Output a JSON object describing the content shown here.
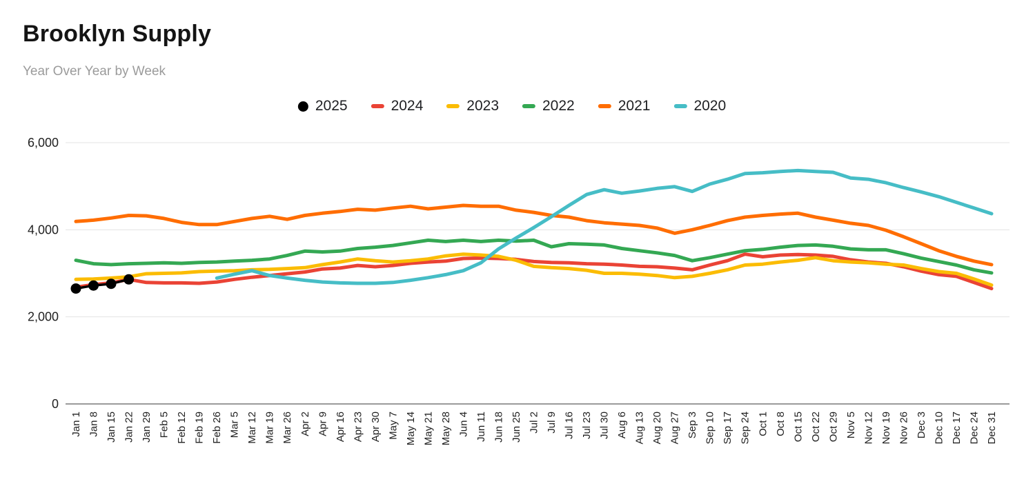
{
  "header": {
    "title": "Brooklyn Supply",
    "subtitle": "Year Over Year by Week"
  },
  "legend": {
    "position": "top-center"
  },
  "chart_data": {
    "type": "line",
    "title": "Brooklyn Supply",
    "subtitle": "Year Over Year by Week",
    "xlabel": "",
    "ylabel": "",
    "ylim": [
      0,
      6000
    ],
    "y_ticks": [
      0,
      2000,
      4000,
      6000
    ],
    "y_tick_labels": [
      "0",
      "2,000",
      "4,000",
      "6,000"
    ],
    "grid": "horizontal",
    "x_label_rotation": -90,
    "categories": [
      "Jan 1",
      "Jan 8",
      "Jan 15",
      "Jan 22",
      "Jan 29",
      "Feb 5",
      "Feb 12",
      "Feb 19",
      "Feb 26",
      "Mar 5",
      "Mar 12",
      "Mar 19",
      "Mar 26",
      "Apr 2",
      "Apr 9",
      "Apr 16",
      "Apr 23",
      "Apr 30",
      "May 7",
      "May 14",
      "May 21",
      "May 28",
      "Jun 4",
      "Jun 11",
      "Jun 18",
      "Jun 25",
      "Jul 2",
      "Jul 9",
      "Jul 16",
      "Jul 23",
      "Jul 30",
      "Aug 6",
      "Aug 13",
      "Aug 20",
      "Aug 27",
      "Sep 3",
      "Sep 10",
      "Sep 17",
      "Sep 24",
      "Oct 1",
      "Oct 8",
      "Oct 15",
      "Oct 22",
      "Oct 29",
      "Nov 5",
      "Nov 12",
      "Nov 19",
      "Nov 26",
      "Dec 3",
      "Dec 10",
      "Dec 17",
      "Dec 24",
      "Dec 31"
    ],
    "series": [
      {
        "name": "2025",
        "color": "#000000",
        "style": "line+markers",
        "values": [
          2650,
          2720,
          2760,
          2860
        ]
      },
      {
        "name": "2024",
        "color": "#ea4335",
        "style": "line",
        "values": [
          2680,
          2740,
          2780,
          2860,
          2790,
          2780,
          2780,
          2770,
          2800,
          2860,
          2910,
          2950,
          2990,
          3030,
          3100,
          3120,
          3180,
          3150,
          3180,
          3230,
          3260,
          3280,
          3340,
          3350,
          3340,
          3320,
          3270,
          3250,
          3240,
          3220,
          3210,
          3190,
          3160,
          3150,
          3120,
          3080,
          3190,
          3290,
          3440,
          3380,
          3420,
          3430,
          3420,
          3390,
          3310,
          3260,
          3230,
          3150,
          3050,
          2970,
          2930,
          2790,
          2650
        ]
      },
      {
        "name": "2023",
        "color": "#fbbc04",
        "style": "line",
        "values": [
          2860,
          2870,
          2890,
          2920,
          2990,
          3000,
          3010,
          3040,
          3050,
          3060,
          3080,
          3090,
          3110,
          3130,
          3200,
          3260,
          3330,
          3290,
          3260,
          3290,
          3330,
          3400,
          3440,
          3420,
          3390,
          3300,
          3160,
          3130,
          3110,
          3070,
          3000,
          3000,
          2980,
          2950,
          2900,
          2930,
          3000,
          3080,
          3190,
          3210,
          3260,
          3300,
          3360,
          3290,
          3260,
          3240,
          3210,
          3190,
          3110,
          3040,
          3000,
          2870,
          2730
        ]
      },
      {
        "name": "2022",
        "color": "#34a853",
        "style": "line",
        "values": [
          3300,
          3220,
          3200,
          3220,
          3230,
          3240,
          3230,
          3250,
          3260,
          3280,
          3300,
          3330,
          3410,
          3510,
          3490,
          3510,
          3570,
          3600,
          3640,
          3700,
          3760,
          3730,
          3760,
          3730,
          3760,
          3740,
          3760,
          3610,
          3680,
          3670,
          3650,
          3570,
          3520,
          3470,
          3410,
          3290,
          3360,
          3440,
          3520,
          3550,
          3600,
          3640,
          3650,
          3620,
          3560,
          3540,
          3540,
          3450,
          3350,
          3270,
          3190,
          3080,
          3010
        ]
      },
      {
        "name": "2021",
        "color": "#ff6d01",
        "style": "line",
        "values": [
          4190,
          4220,
          4270,
          4330,
          4320,
          4260,
          4170,
          4120,
          4120,
          4190,
          4260,
          4310,
          4240,
          4330,
          4380,
          4420,
          4470,
          4450,
          4500,
          4540,
          4480,
          4520,
          4560,
          4540,
          4540,
          4450,
          4400,
          4330,
          4290,
          4210,
          4160,
          4130,
          4100,
          4040,
          3920,
          4000,
          4100,
          4210,
          4290,
          4330,
          4360,
          4380,
          4290,
          4220,
          4150,
          4100,
          3990,
          3840,
          3680,
          3520,
          3390,
          3280,
          3200
        ]
      },
      {
        "name": "2020",
        "color": "#46bdc6",
        "style": "line",
        "values": [
          null,
          null,
          null,
          null,
          null,
          null,
          null,
          null,
          2890,
          2980,
          3060,
          2950,
          2890,
          2840,
          2800,
          2780,
          2770,
          2770,
          2790,
          2840,
          2900,
          2970,
          3060,
          3240,
          3560,
          3810,
          4050,
          4300,
          4560,
          4810,
          4920,
          4840,
          4890,
          4950,
          4990,
          4880,
          5050,
          5160,
          5290,
          5310,
          5340,
          5360,
          5340,
          5320,
          5190,
          5160,
          5080,
          4970,
          4870,
          4760,
          4630,
          4500,
          4370
        ]
      }
    ],
    "draw_order": [
      "2024",
      "2023",
      "2022",
      "2021",
      "2020",
      "2025"
    ],
    "colors": {
      "grid_line": "#e3e3e3",
      "axis_line": "#9a9a9a",
      "tick_text": "#1f1f1f"
    }
  }
}
